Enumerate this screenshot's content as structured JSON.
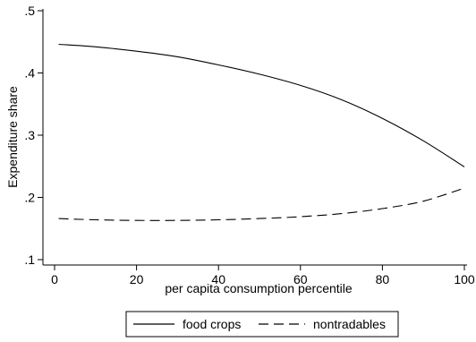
{
  "chart_data": {
    "type": "line",
    "xlabel": "per capita consumption percentile",
    "ylabel": "Expenditure share",
    "xlim": [
      0,
      100
    ],
    "ylim": [
      0.1,
      0.5
    ],
    "x_ticks": [
      0,
      20,
      40,
      60,
      80,
      100
    ],
    "x_tick_labels": [
      "0",
      "20",
      "40",
      "60",
      "80",
      "100"
    ],
    "y_ticks": [
      0.1,
      0.2,
      0.3,
      0.4,
      0.5
    ],
    "y_tick_labels": [
      ".1",
      ".2",
      ".3",
      ".4",
      ".5"
    ],
    "grid": false,
    "legend_position": "bottom",
    "series": [
      {
        "name": "food crops",
        "line_style": "solid",
        "x": [
          1,
          10,
          20,
          30,
          40,
          50,
          60,
          70,
          80,
          90,
          100
        ],
        "y": [
          0.446,
          0.442,
          0.435,
          0.426,
          0.413,
          0.398,
          0.38,
          0.357,
          0.327,
          0.291,
          0.249
        ]
      },
      {
        "name": "nontradables",
        "line_style": "dashed",
        "x": [
          1,
          10,
          20,
          30,
          40,
          50,
          60,
          70,
          80,
          90,
          100
        ],
        "y": [
          0.166,
          0.164,
          0.163,
          0.163,
          0.164,
          0.166,
          0.169,
          0.174,
          0.182,
          0.194,
          0.215
        ]
      }
    ]
  }
}
